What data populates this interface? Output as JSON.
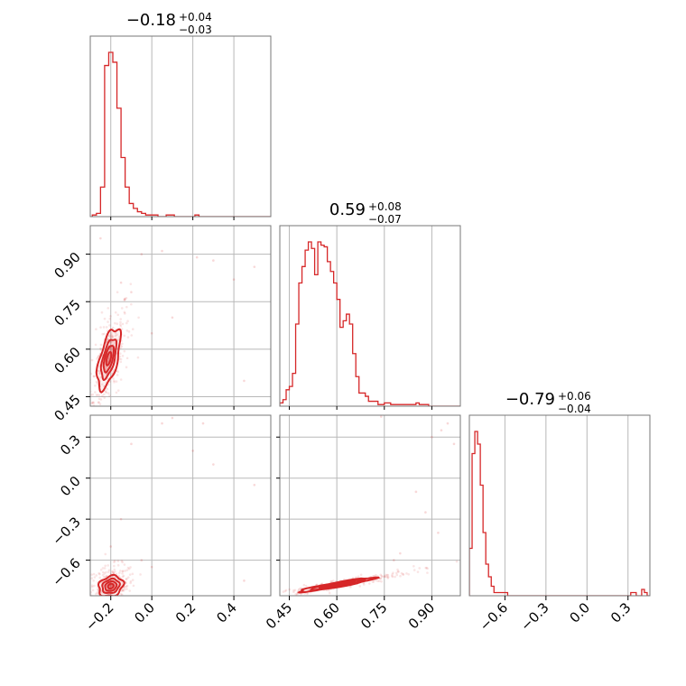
{
  "chart_data": {
    "type": "corner",
    "color": "#d62728",
    "parameters": [
      {
        "title_median": "−0.18",
        "title_plus": "+0.04",
        "title_minus": "−0.03",
        "range": [
          -0.3,
          0.58
        ],
        "ticks": [
          -0.2,
          0.0,
          0.2,
          0.4
        ],
        "tick_labels": [
          "−0.2",
          "0.0",
          "0.2",
          "0.4"
        ],
        "hist_bin_width": 0.02,
        "hist_start": -0.29,
        "hist_counts": [
          1,
          2,
          18,
          92,
          100,
          94,
          66,
          36,
          18,
          8,
          5,
          3,
          2,
          1,
          1,
          1,
          0,
          0,
          1,
          1,
          0,
          0,
          0,
          0,
          0,
          1,
          0,
          0,
          0,
          0,
          0,
          0,
          0,
          0,
          0,
          0,
          0,
          0,
          0,
          0,
          0,
          0,
          0,
          0
        ]
      },
      {
        "title_median": "0.59",
        "title_plus": "+0.08",
        "title_minus": "−0.07",
        "range": [
          0.42,
          0.99
        ],
        "ticks": [
          0.45,
          0.6,
          0.75,
          0.9
        ],
        "tick_labels": [
          "0.45",
          "0.60",
          "0.75",
          "0.90"
        ],
        "hist_bin_width": 0.01,
        "hist_start": 0.42,
        "hist_counts": [
          2,
          4,
          10,
          12,
          20,
          50,
          75,
          85,
          95,
          100,
          96,
          80,
          100,
          98,
          97,
          88,
          82,
          75,
          65,
          48,
          52,
          56,
          50,
          32,
          18,
          8,
          8,
          6,
          3,
          3,
          3,
          1,
          1,
          2,
          2,
          1,
          1,
          1,
          1,
          1,
          1,
          1,
          1,
          2,
          1,
          1,
          1,
          0,
          0,
          0,
          0,
          0,
          0,
          0,
          0,
          0,
          0
        ]
      },
      {
        "title_median": "−0.79",
        "title_plus": "+0.06",
        "title_minus": "−0.04",
        "range": [
          -0.86,
          0.46
        ],
        "ticks": [
          -0.6,
          -0.3,
          0.0,
          0.3
        ],
        "tick_labels": [
          "−0.6",
          "−0.3",
          "0.0",
          "0.3"
        ],
        "hist_bin_width": 0.02,
        "hist_start": -0.86,
        "hist_counts": [
          15,
          45,
          52,
          48,
          35,
          20,
          10,
          6,
          3,
          1,
          1,
          1,
          1,
          1,
          0,
          0,
          0,
          0,
          0,
          0,
          0,
          0,
          0,
          0,
          0,
          0,
          0,
          0,
          0,
          0,
          0,
          0,
          0,
          0,
          0,
          0,
          0,
          0,
          0,
          0,
          0,
          0,
          0,
          0,
          0,
          0,
          0,
          0,
          0,
          0,
          0,
          0,
          0,
          0,
          0,
          0,
          0,
          0,
          0,
          1,
          1,
          0,
          0,
          2,
          1,
          0
        ]
      }
    ],
    "pairs": [
      {
        "x_param": 0,
        "y_param": 1,
        "center": [
          -0.21,
          0.57
        ],
        "sd": [
          0.035,
          0.06
        ],
        "corr": 0.6,
        "contour_scales": [
          0.35,
          0.7,
          1.05,
          1.6
        ],
        "outliers": [
          [
            -0.05,
            0.9
          ],
          [
            0.05,
            0.91
          ],
          [
            0.22,
            0.89
          ],
          [
            0.3,
            0.88
          ],
          [
            0.5,
            0.86
          ],
          [
            0.4,
            0.82
          ],
          [
            0.45,
            0.5
          ],
          [
            -0.1,
            0.78
          ],
          [
            -0.15,
            0.81
          ],
          [
            0.0,
            0.65
          ],
          [
            0.1,
            0.7
          ],
          [
            -0.25,
            0.95
          ]
        ]
      },
      {
        "x_param": 0,
        "y_param": 2,
        "center": [
          -0.2,
          -0.79
        ],
        "sd": [
          0.04,
          0.05
        ],
        "corr": 0.2,
        "contour_scales": [
          0.35,
          0.7,
          1.05,
          1.5
        ],
        "outliers": [
          [
            -0.1,
            0.25
          ],
          [
            0.05,
            0.4
          ],
          [
            0.1,
            0.44
          ],
          [
            0.25,
            0.4
          ],
          [
            0.5,
            -0.05
          ],
          [
            0.45,
            -0.75
          ],
          [
            -0.2,
            -0.5
          ],
          [
            0.0,
            -0.65
          ],
          [
            -0.15,
            -0.3
          ],
          [
            0.2,
            0.2
          ],
          [
            -0.05,
            -0.6
          ],
          [
            0.3,
            0.1
          ]
        ]
      },
      {
        "x_param": 1,
        "y_param": 2,
        "center": [
          0.6,
          -0.78
        ],
        "sd": [
          0.08,
          0.035
        ],
        "corr": 0.94,
        "contour_scales": [
          0.35,
          0.7,
          1.05,
          1.5
        ],
        "outliers": [
          [
            0.93,
            0.35
          ],
          [
            0.95,
            0.4
          ],
          [
            0.97,
            0.25
          ],
          [
            0.9,
            0.3
          ],
          [
            0.85,
            -0.1
          ],
          [
            0.88,
            -0.25
          ],
          [
            0.8,
            -0.55
          ],
          [
            0.78,
            -0.6
          ],
          [
            0.74,
            0.45
          ],
          [
            0.92,
            -0.4
          ]
        ]
      }
    ]
  }
}
